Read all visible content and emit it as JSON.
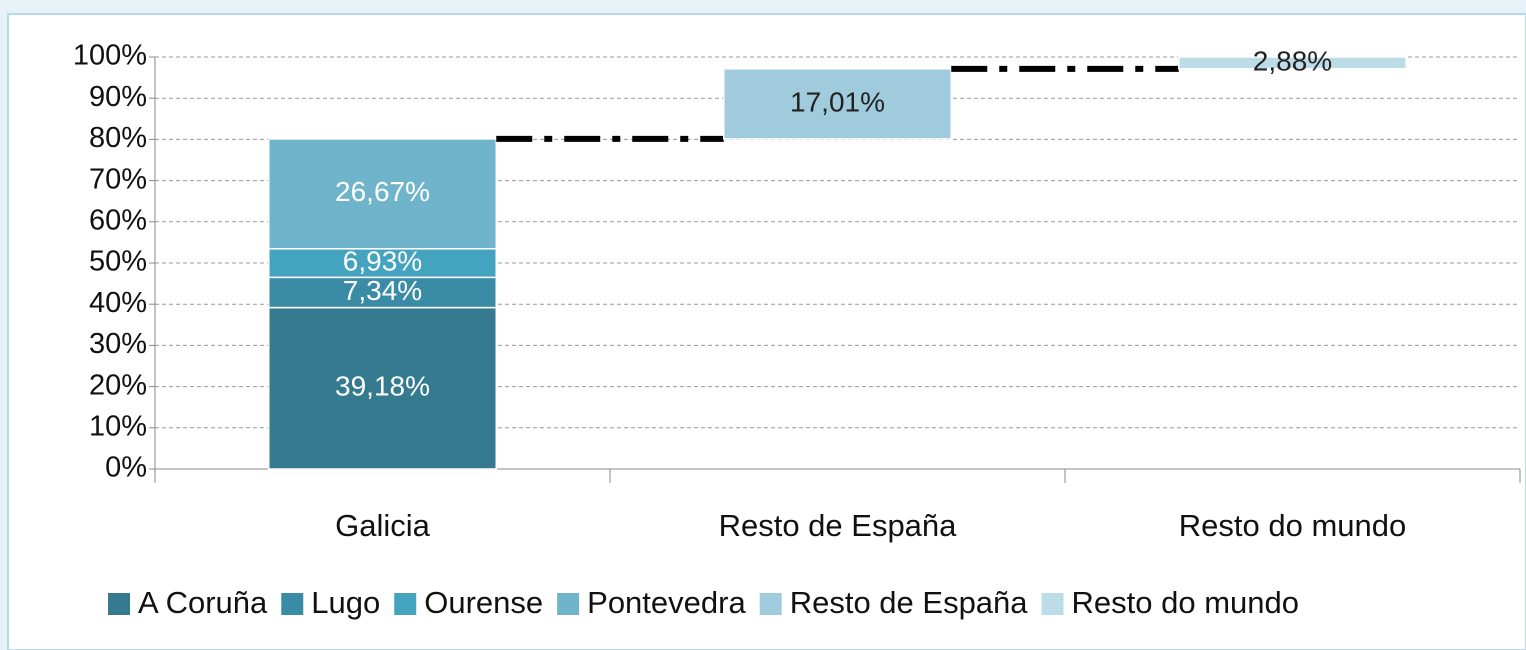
{
  "chart_data": {
    "type": "waterfall",
    "categories": [
      "Galicia",
      "Resto de España",
      "Resto do mundo"
    ],
    "series": [
      {
        "name": "A Coruña",
        "color": "#357a8f",
        "values": [
          39.18,
          null,
          null
        ],
        "value_labels": [
          "39,18%",
          null,
          null
        ]
      },
      {
        "name": "Lugo",
        "color": "#3a8ba6",
        "values": [
          7.34,
          null,
          null
        ],
        "value_labels": [
          "7,34%",
          null,
          null
        ]
      },
      {
        "name": "Ourense",
        "color": "#44a3bf",
        "values": [
          6.93,
          null,
          null
        ],
        "value_labels": [
          "6,93%",
          null,
          null
        ]
      },
      {
        "name": "Pontevedra",
        "color": "#70b4cc",
        "values": [
          26.67,
          null,
          null
        ],
        "value_labels": [
          "26,67%",
          null,
          null
        ]
      },
      {
        "name": "Resto de España",
        "color": "#9fcbdc",
        "values": [
          null,
          17.01,
          null
        ],
        "value_labels": [
          null,
          "17,01%",
          null
        ]
      },
      {
        "name": "Resto do mundo",
        "color": "#bcdde8",
        "values": [
          null,
          null,
          2.88
        ],
        "value_labels": [
          null,
          null,
          "2,88%"
        ]
      }
    ],
    "ylim": [
      0,
      100
    ],
    "yticks": [
      {
        "value": 0,
        "label": "0%"
      },
      {
        "value": 10,
        "label": "10%"
      },
      {
        "value": 20,
        "label": "20%"
      },
      {
        "value": 30,
        "label": "30%"
      },
      {
        "value": 40,
        "label": "40%"
      },
      {
        "value": 50,
        "label": "50%"
      },
      {
        "value": 60,
        "label": "60%"
      },
      {
        "value": 70,
        "label": "70%"
      },
      {
        "value": 80,
        "label": "80%"
      },
      {
        "value": 90,
        "label": "90%"
      },
      {
        "value": 100,
        "label": "100%"
      }
    ],
    "grid": true
  }
}
